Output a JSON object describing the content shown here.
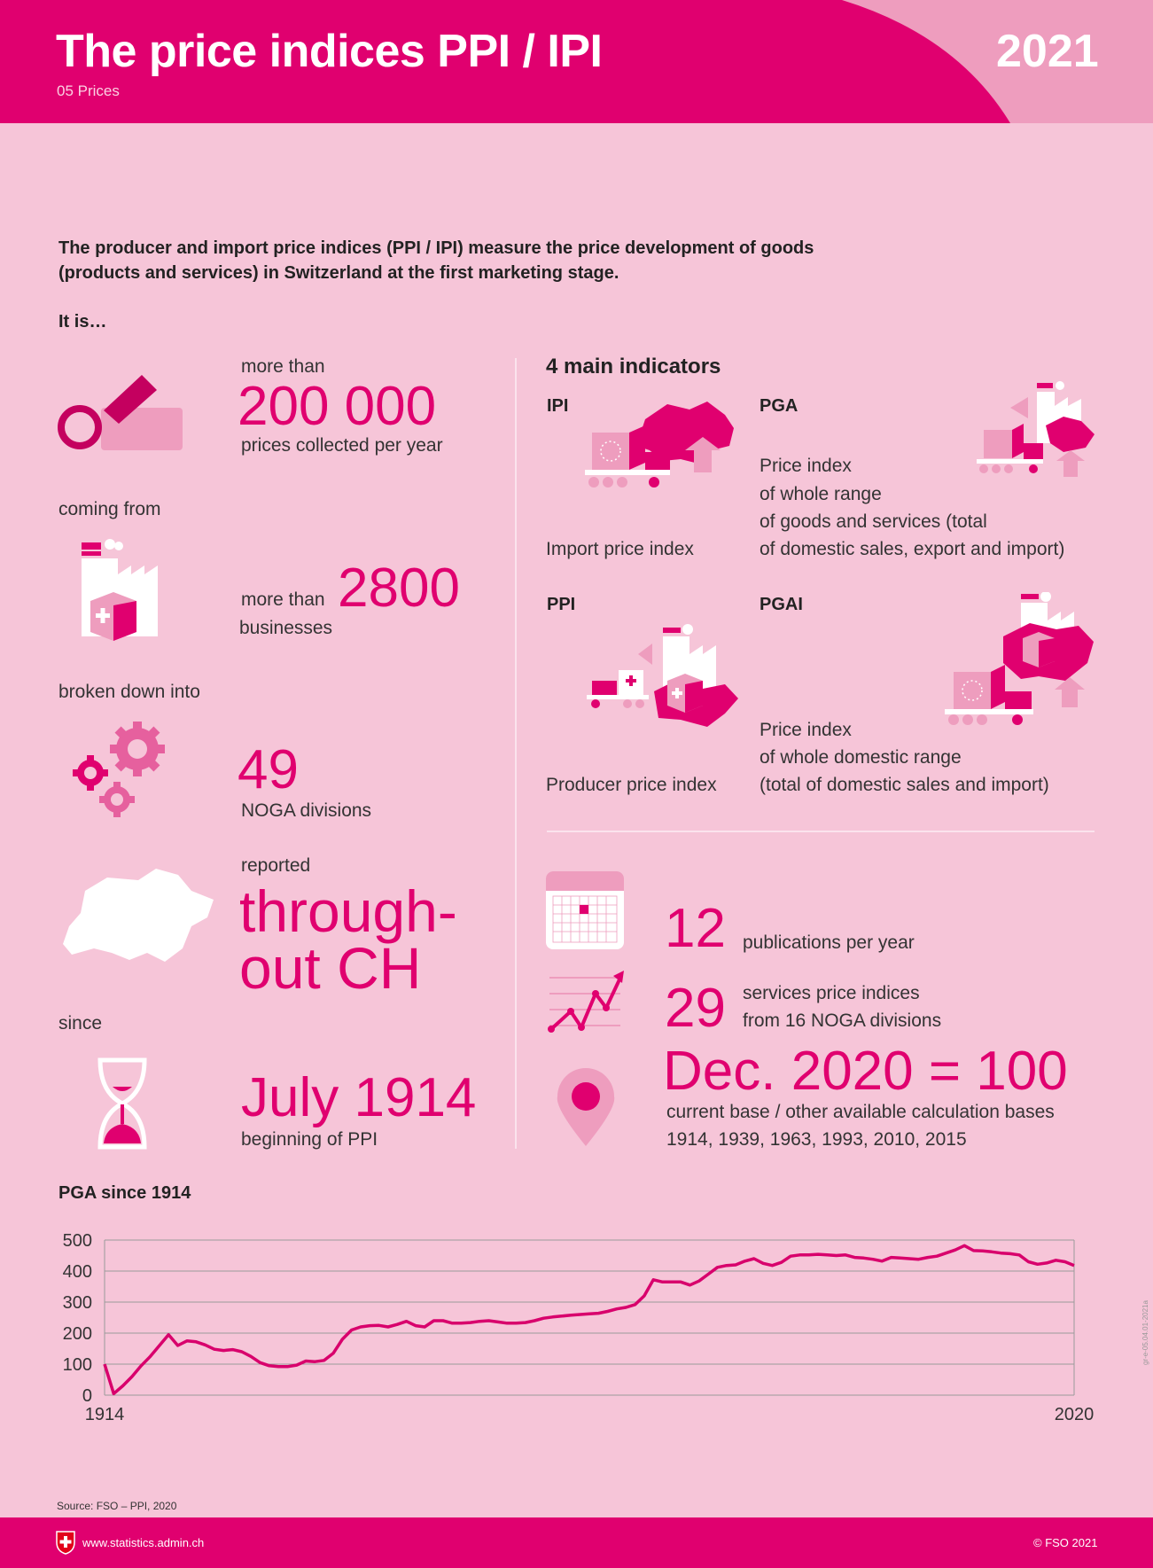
{
  "header": {
    "title": "The price indices PPI / IPI",
    "subtitle": "05 Prices",
    "year": "2021"
  },
  "intro": "The producer and import price indices (PPI / IPI) measure the price development of goods (products and services) in Switzerland at the first marketing stage.",
  "it_is": "It is…",
  "left": {
    "prices": {
      "pre": "more than",
      "value": "200 000",
      "post": "prices collected per year"
    },
    "coming_from": "coming from",
    "businesses": {
      "pre": "more than",
      "value": "2800",
      "post": "businesses"
    },
    "broken_down": "broken down into",
    "noga": {
      "value": "49",
      "post": "NOGA divisions"
    },
    "reported": {
      "pre": "reported",
      "line1": "through-",
      "line2": "out CH"
    },
    "since": "since",
    "july": {
      "value": "July 1914",
      "post": "beginning of PPI"
    }
  },
  "right": {
    "heading": "4 main indicators",
    "ipi": {
      "code": "IPI",
      "desc": "Import price index"
    },
    "pga": {
      "code": "PGA",
      "desc1": "Price index",
      "desc2": "of whole range",
      "desc3": "of goods and services (total",
      "desc4": "of domestic sales, export and import)"
    },
    "ppi": {
      "code": "PPI",
      "desc": "Producer price index"
    },
    "pgai": {
      "code": "PGAI",
      "desc1": "Price index",
      "desc2": "of whole domestic range",
      "desc3": "(total of domestic sales and import)"
    },
    "pubs": {
      "value": "12",
      "label": "publications per year"
    },
    "services": {
      "value": "29",
      "label1": "services price indices",
      "label2": "from 16 NOGA divisions"
    },
    "base": {
      "value": "Dec. 2020 = 100",
      "label1": "current base / other available calculation bases",
      "label2": "1914, 1939, 1963, 1993, 2010, 2015"
    }
  },
  "chart_title": "PGA since 1914",
  "chart_data": {
    "type": "line",
    "title": "PGA since 1914",
    "x_tick_labels": [
      "1914",
      "2020"
    ],
    "y_ticks": [
      0,
      100,
      200,
      300,
      400,
      500
    ],
    "xlim": [
      1914,
      2020
    ],
    "ylim": [
      0,
      500
    ],
    "grid": true,
    "series": [
      {
        "values": [
          [
            1914,
            100
          ],
          [
            1915,
            5
          ],
          [
            1916,
            30
          ],
          [
            1917,
            60
          ],
          [
            1918,
            95
          ],
          [
            1919,
            125
          ],
          [
            1920,
            160
          ],
          [
            1921,
            195
          ],
          [
            1922,
            160
          ],
          [
            1923,
            175
          ],
          [
            1924,
            172
          ],
          [
            1925,
            162
          ],
          [
            1926,
            148
          ],
          [
            1927,
            144
          ],
          [
            1928,
            147
          ],
          [
            1929,
            140
          ],
          [
            1930,
            125
          ],
          [
            1931,
            105
          ],
          [
            1932,
            95
          ],
          [
            1933,
            92
          ],
          [
            1934,
            92
          ],
          [
            1935,
            97
          ],
          [
            1936,
            110
          ],
          [
            1937,
            108
          ],
          [
            1938,
            112
          ],
          [
            1939,
            135
          ],
          [
            1940,
            180
          ],
          [
            1941,
            210
          ],
          [
            1942,
            220
          ],
          [
            1943,
            224
          ],
          [
            1944,
            225
          ],
          [
            1945,
            220
          ],
          [
            1946,
            228
          ],
          [
            1947,
            238
          ],
          [
            1948,
            224
          ],
          [
            1949,
            220
          ],
          [
            1950,
            240
          ],
          [
            1951,
            240
          ],
          [
            1952,
            232
          ],
          [
            1953,
            232
          ],
          [
            1954,
            234
          ],
          [
            1955,
            238
          ],
          [
            1956,
            240
          ],
          [
            1957,
            236
          ],
          [
            1958,
            232
          ],
          [
            1959,
            232
          ],
          [
            1960,
            234
          ],
          [
            1961,
            240
          ],
          [
            1962,
            248
          ],
          [
            1963,
            252
          ],
          [
            1964,
            255
          ],
          [
            1965,
            258
          ],
          [
            1966,
            260
          ],
          [
            1967,
            262
          ],
          [
            1968,
            264
          ],
          [
            1969,
            270
          ],
          [
            1970,
            278
          ],
          [
            1971,
            283
          ],
          [
            1972,
            292
          ],
          [
            1973,
            320
          ],
          [
            1974,
            372
          ],
          [
            1975,
            365
          ],
          [
            1976,
            365
          ],
          [
            1977,
            365
          ],
          [
            1978,
            355
          ],
          [
            1979,
            368
          ],
          [
            1980,
            390
          ],
          [
            1981,
            412
          ],
          [
            1982,
            418
          ],
          [
            1983,
            420
          ],
          [
            1984,
            432
          ],
          [
            1985,
            440
          ],
          [
            1986,
            425
          ],
          [
            1987,
            418
          ],
          [
            1988,
            428
          ],
          [
            1989,
            448
          ],
          [
            1990,
            452
          ],
          [
            1991,
            452
          ],
          [
            1992,
            454
          ],
          [
            1993,
            452
          ],
          [
            1994,
            450
          ],
          [
            1995,
            452
          ],
          [
            1996,
            444
          ],
          [
            1997,
            442
          ],
          [
            1998,
            438
          ],
          [
            1999,
            432
          ],
          [
            2000,
            444
          ],
          [
            2001,
            442
          ],
          [
            2002,
            440
          ],
          [
            2003,
            438
          ],
          [
            2004,
            444
          ],
          [
            2005,
            448
          ],
          [
            2006,
            458
          ],
          [
            2007,
            468
          ],
          [
            2008,
            482
          ],
          [
            2009,
            466
          ],
          [
            2010,
            465
          ],
          [
            2011,
            462
          ],
          [
            2012,
            458
          ],
          [
            2013,
            456
          ],
          [
            2014,
            452
          ],
          [
            2015,
            430
          ],
          [
            2016,
            422
          ],
          [
            2017,
            426
          ],
          [
            2018,
            435
          ],
          [
            2019,
            430
          ],
          [
            2020,
            418
          ]
        ]
      }
    ]
  },
  "source": "Source: FSO – PPI, 2020",
  "footer": {
    "url": "www.statistics.admin.ch",
    "copyright": "© FSO 2021"
  },
  "side_code": "gr-e-05.04.01-2021a",
  "colors": {
    "primary": "#e0006f",
    "light": "#f0a0c2",
    "background": "#f6c5d8"
  }
}
